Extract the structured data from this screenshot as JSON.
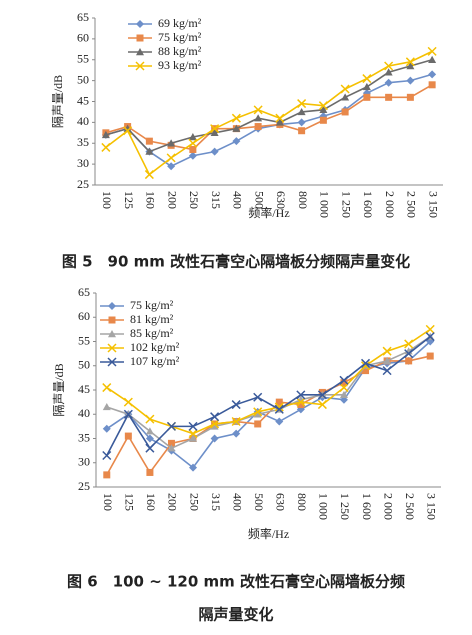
{
  "chart_data": [
    {
      "type": "line",
      "ylabel": "隔声量/dB",
      "xlabel": "频率/Hz",
      "caption": [
        "图 5　90 mm 改性石膏空心隔墙板分频隔声量变化"
      ],
      "categories": [
        "100",
        "125",
        "160",
        "200",
        "250",
        "315",
        "400",
        "500",
        "630",
        "800",
        "1 000",
        "1 250",
        "1 600",
        "2 000",
        "2 500",
        "3 150"
      ],
      "ylim": [
        25,
        65
      ],
      "yticks": [
        25,
        30,
        35,
        40,
        45,
        50,
        55,
        60,
        65
      ],
      "grid": false,
      "series": [
        {
          "name": "69 kg/m²",
          "color": "#6d8fc9",
          "marker": "diamond",
          "values": [
            37,
            38.5,
            33,
            29.5,
            32,
            33,
            35.5,
            38.5,
            39.5,
            40,
            41.5,
            43,
            47,
            49.5,
            50,
            51.5
          ]
        },
        {
          "name": "75 kg/m²",
          "color": "#e8884a",
          "marker": "square",
          "values": [
            37.5,
            39,
            35.5,
            34.5,
            33.5,
            38.5,
            38.5,
            39,
            39.5,
            38,
            40.5,
            42.5,
            46,
            46,
            46,
            49
          ]
        },
        {
          "name": "88 kg/m²",
          "color": "#6b6b6b",
          "marker": "triangle",
          "values": [
            37,
            38.5,
            33,
            35,
            36.5,
            37.5,
            38.5,
            41,
            40,
            42.5,
            43,
            46,
            48.5,
            52,
            53.5,
            55
          ]
        },
        {
          "name": "93 kg/m²",
          "color": "#f5c000",
          "marker": "x",
          "values": [
            34,
            38,
            27.5,
            31.5,
            35,
            38.5,
            41,
            43,
            41,
            44.5,
            44,
            48,
            50.5,
            53.5,
            54.5,
            57
          ]
        }
      ]
    },
    {
      "type": "line",
      "ylabel": "隔声量/dB",
      "xlabel": "频率/Hz",
      "caption": [
        "图 6　100 ~ 120 mm 改性石膏空心隔墙板分频",
        "隔声量变化"
      ],
      "categories": [
        "100",
        "125",
        "160",
        "200",
        "250",
        "315",
        "400",
        "500",
        "630",
        "800",
        "1 000",
        "1 250",
        "1 600",
        "2 000",
        "2 500",
        "3 150"
      ],
      "ylim": [
        25,
        65
      ],
      "yticks": [
        25,
        30,
        35,
        40,
        45,
        50,
        55,
        60,
        65
      ],
      "grid": false,
      "series": [
        {
          "name": "75 kg/m²",
          "color": "#6d8fc9",
          "marker": "diamond",
          "values": [
            37,
            40,
            35,
            32.5,
            29,
            35,
            36,
            40.5,
            38.5,
            41,
            43.5,
            43,
            49.5,
            50.5,
            51,
            55
          ]
        },
        {
          "name": "81 kg/m²",
          "color": "#e8884a",
          "marker": "square",
          "values": [
            27.5,
            35.5,
            28,
            34,
            35,
            38,
            38.5,
            38,
            42.5,
            42,
            44.5,
            46.5,
            49,
            51,
            51,
            52
          ]
        },
        {
          "name": "85 kg/m²",
          "color": "#a5a5a5",
          "marker": "triangle",
          "values": [
            41.5,
            40,
            36.5,
            33,
            35,
            37.5,
            38.5,
            40,
            41,
            43,
            44,
            44,
            50,
            51,
            53,
            56
          ]
        },
        {
          "name": "102 kg/m²",
          "color": "#f5c000",
          "marker": "x",
          "values": [
            45.5,
            42.5,
            39,
            37.5,
            36,
            38,
            38.5,
            40.5,
            41.5,
            42.5,
            42,
            45.5,
            50,
            53,
            54.5,
            57.5
          ]
        },
        {
          "name": "107 kg/m²",
          "color": "#3a5a9a",
          "marker": "x",
          "values": [
            31.5,
            40,
            33,
            37.5,
            37.5,
            39.5,
            42,
            43.5,
            41,
            44,
            44,
            47,
            50.5,
            49,
            52.5,
            56
          ]
        }
      ]
    }
  ]
}
